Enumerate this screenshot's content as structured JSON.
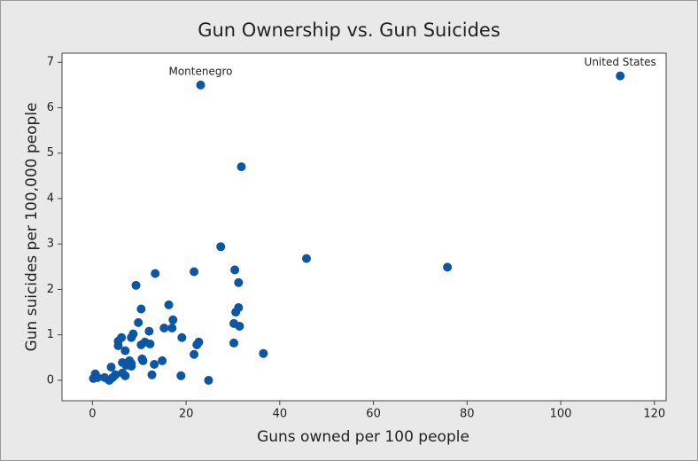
{
  "chart_data": {
    "type": "scatter",
    "title": "Gun Ownership vs. Gun Suicides",
    "x_label": "Guns owned per 100 people",
    "y_label": "Gun suicides per 100,000 people",
    "x": [
      23.1,
      112.7,
      31.8,
      27.4,
      45.7,
      75.8,
      30.4,
      21.7,
      13.4,
      31.2,
      9.3,
      31.2,
      30.6,
      16.3,
      10.4,
      17.2,
      9.8,
      30.2,
      31.4,
      15.3,
      17.0,
      12.1,
      8.7,
      6.2,
      8.3,
      19.1,
      5.5,
      11.2,
      12.3,
      22.7,
      22.3,
      10.4,
      30.2,
      5.5,
      7.0,
      36.5,
      21.7,
      14.9,
      10.6,
      10.8,
      7.9,
      6.4,
      13.2,
      4.0,
      7.2,
      8.3,
      7.0,
      6.4,
      12.7,
      18.9,
      4.9,
      4.3,
      3.6,
      0.6,
      1.1,
      0.2,
      24.8,
      2.6,
      8.3
    ],
    "y": [
      6.5,
      6.7,
      4.7,
      2.94,
      2.68,
      2.49,
      2.43,
      2.39,
      2.35,
      2.15,
      2.09,
      1.6,
      1.5,
      1.66,
      1.57,
      1.33,
      1.27,
      1.25,
      1.19,
      1.15,
      1.15,
      1.08,
      1.02,
      0.94,
      0.94,
      0.94,
      0.86,
      0.84,
      0.8,
      0.84,
      0.78,
      0.78,
      0.82,
      0.76,
      0.65,
      0.59,
      0.57,
      0.43,
      0.47,
      0.43,
      0.43,
      0.39,
      0.35,
      0.29,
      0.33,
      0.31,
      0.1,
      0.16,
      0.12,
      0.1,
      0.12,
      0.06,
      0.0,
      0.14,
      0.06,
      0.04,
      0.0,
      0.06,
      0.37
    ],
    "labels": [
      "Montenegro",
      "United States",
      null,
      null,
      null,
      null,
      null,
      null,
      null,
      null,
      null,
      null,
      null,
      null,
      null,
      null,
      null,
      null,
      null,
      null,
      null,
      null,
      null,
      null,
      null,
      null,
      null,
      null,
      null,
      null,
      null,
      null,
      null,
      null,
      null,
      null,
      null,
      null,
      null,
      null,
      null,
      null,
      null,
      null,
      null,
      null,
      null,
      null,
      null,
      null,
      null,
      null,
      null,
      null,
      null,
      null,
      null,
      null,
      null
    ],
    "color": "#0b57a4",
    "xlim": [
      -6.5,
      122.5
    ],
    "ylim": [
      -0.45,
      7.2
    ],
    "xticks": [
      0,
      20,
      40,
      60,
      80,
      100,
      120
    ],
    "yticks": [
      0,
      1,
      2,
      3,
      4,
      5,
      6,
      7
    ]
  }
}
